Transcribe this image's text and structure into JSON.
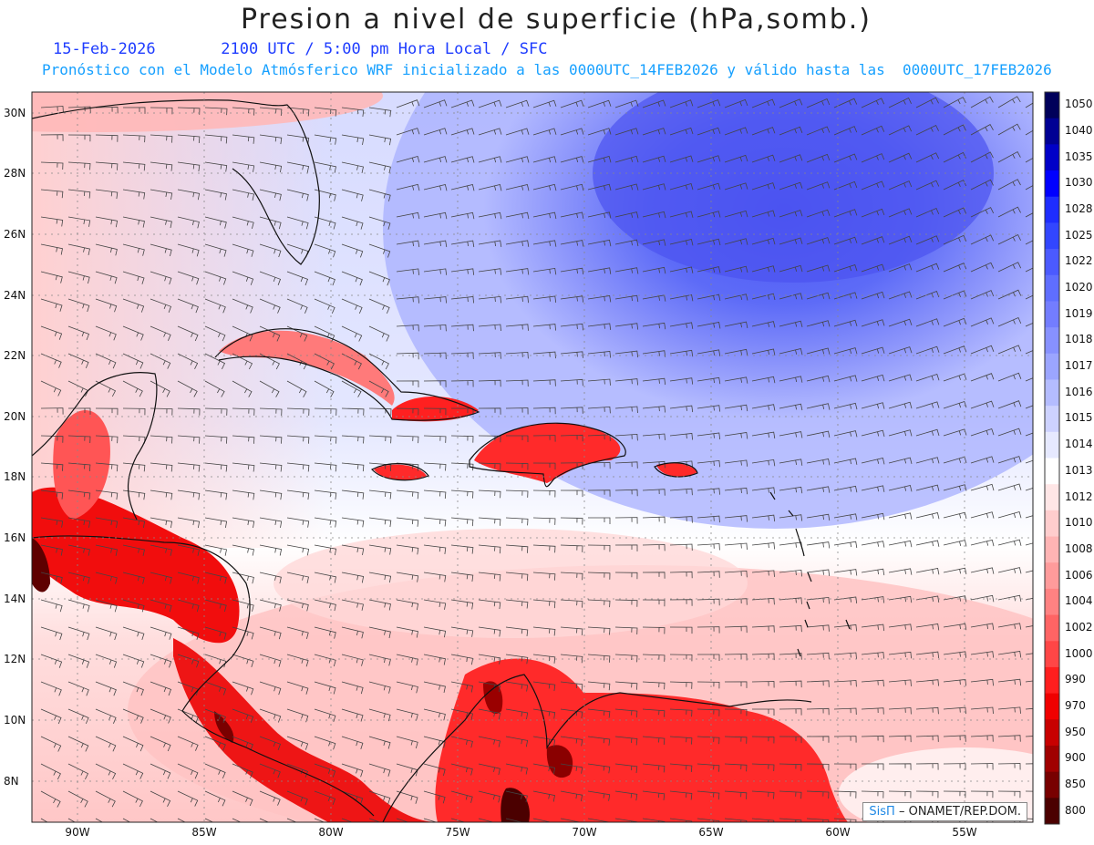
{
  "header": {
    "title": "Presion a nivel de superficie (hPa,somb.)",
    "date": "15-Feb-2026",
    "time_info": "2100 UTC / 5:00 pm Hora Local / SFC",
    "subtitle": "Pronóstico con el Modelo Atmósferico WRF inicializado a las 0000UTC_14FEB2026 y válido hasta las  0000UTC_17FEB2026"
  },
  "axes": {
    "lat_labels": [
      "30N",
      "28N",
      "26N",
      "24N",
      "22N",
      "20N",
      "18N",
      "16N",
      "14N",
      "12N",
      "10N",
      "8N"
    ],
    "lat_values": [
      30,
      28,
      26,
      24,
      22,
      20,
      18,
      16,
      14,
      12,
      10,
      8
    ],
    "lon_labels": [
      "90W",
      "85W",
      "80W",
      "75W",
      "70W",
      "65W",
      "60W",
      "55W"
    ],
    "lon_values": [
      -90,
      -85,
      -80,
      -75,
      -70,
      -65,
      -60,
      -55
    ]
  },
  "colorbar": {
    "levels": [
      "1050",
      "1040",
      "1035",
      "1030",
      "1028",
      "1025",
      "1022",
      "1020",
      "1019",
      "1018",
      "1017",
      "1016",
      "1015",
      "1014",
      "1013",
      "1012",
      "1010",
      "1008",
      "1006",
      "1004",
      "1002",
      "1000",
      "990",
      "970",
      "950",
      "900",
      "850",
      "800"
    ],
    "colors": [
      "#00005a",
      "#000094",
      "#0000c8",
      "#0000ff",
      "#1e2dff",
      "#3246ff",
      "#4b5aff",
      "#5f6eff",
      "#737dff",
      "#8791ff",
      "#9ba5ff",
      "#b4bcff",
      "#cdd2ff",
      "#e6e9ff",
      "#ffffff",
      "#ffe6e6",
      "#ffcdcd",
      "#ffb4b4",
      "#ff9b9b",
      "#ff8282",
      "#ff6464",
      "#ff4646",
      "#ff1e1e",
      "#f00000",
      "#c80000",
      "#a00000",
      "#780000",
      "#4b0000"
    ]
  },
  "credit": {
    "logo": "SisΠ",
    "text": "– ONAMET/REP.DOM."
  }
}
